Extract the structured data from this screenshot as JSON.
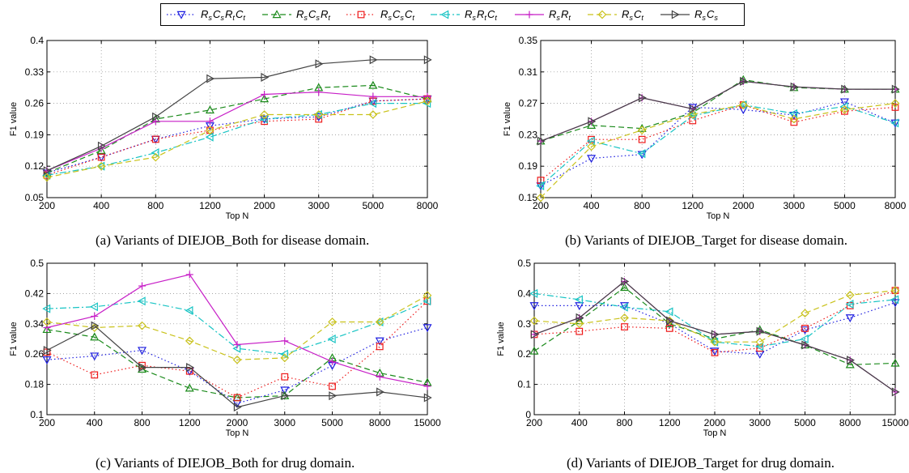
{
  "legend": {
    "entries": [
      {
        "key": "RsCsRtCt",
        "sub": [
          [
            "R",
            "s"
          ],
          [
            "C",
            "s"
          ],
          [
            "R",
            "t"
          ],
          [
            "C",
            "t"
          ]
        ]
      },
      {
        "key": "RsCsRt",
        "sub": [
          [
            "R",
            "s"
          ],
          [
            "C",
            "s"
          ],
          [
            "R",
            "t"
          ]
        ]
      },
      {
        "key": "RsCsCt",
        "sub": [
          [
            "R",
            "s"
          ],
          [
            "C",
            "s"
          ],
          [
            "C",
            "t"
          ]
        ]
      },
      {
        "key": "RsRtCt",
        "sub": [
          [
            "R",
            "s"
          ],
          [
            "R",
            "t"
          ],
          [
            "C",
            "t"
          ]
        ]
      },
      {
        "key": "RsRt",
        "sub": [
          [
            "R",
            "s"
          ],
          [
            "R",
            "t"
          ]
        ]
      },
      {
        "key": "RsCt",
        "sub": [
          [
            "R",
            "s"
          ],
          [
            "C",
            "t"
          ]
        ]
      },
      {
        "key": "RsCs",
        "sub": [
          [
            "R",
            "s"
          ],
          [
            "C",
            "s"
          ]
        ]
      }
    ],
    "placement": "top-center"
  },
  "styles": {
    "RsCsRtCt": {
      "color": "#1f1fe0",
      "marker": "triangle-down",
      "dash": "1.5 3"
    },
    "RsCsRt": {
      "color": "#1a8a1a",
      "marker": "triangle-up",
      "dash": "7 4"
    },
    "RsCsCt": {
      "color": "#ee1c1c",
      "marker": "square",
      "dash": "1.5 3"
    },
    "RsRtCt": {
      "color": "#18c4c4",
      "marker": "triangle-left",
      "dash": "8 3 2 3"
    },
    "RsRt": {
      "color": "#c71fc7",
      "marker": "plus",
      "dash": ""
    },
    "RsCt": {
      "color": "#c9c21a",
      "marker": "diamond",
      "dash": "7 4"
    },
    "RsCs": {
      "color": "#444444",
      "marker": "triangle-right",
      "dash": ""
    }
  },
  "captions": {
    "a": "(a) Variants of DIEJOB_Both for disease domain.",
    "b": "(b) Variants of DIEJOB_Target for disease domain.",
    "c": "(c) Variants of DIEJOB_Both for drug domain.",
    "d": "(d) Variants of DIEJOB_Target for drug domain."
  },
  "chart_data": [
    {
      "id": "a",
      "type": "line",
      "xlabel": "Top N",
      "ylabel": "F1 value",
      "categories": [
        "200",
        "400",
        "800",
        "1200",
        "2000",
        "3000",
        "5000",
        "8000"
      ],
      "ylim": [
        0.05,
        0.4
      ],
      "yticks": [
        "0.05",
        "0.12",
        "0.19",
        "0.26",
        "0.33",
        "0.4"
      ],
      "grid": true,
      "series": [
        {
          "key": "RsCsRtCt",
          "values": [
            0.105,
            0.14,
            0.18,
            0.21,
            0.225,
            0.23,
            0.265,
            0.27
          ]
        },
        {
          "key": "RsCsRt",
          "values": [
            0.105,
            0.155,
            0.225,
            0.245,
            0.27,
            0.295,
            0.3,
            0.27
          ]
        },
        {
          "key": "RsCsCt",
          "values": [
            0.1,
            0.14,
            0.18,
            0.2,
            0.22,
            0.225,
            0.265,
            0.27
          ]
        },
        {
          "key": "RsRtCt",
          "values": [
            0.1,
            0.12,
            0.15,
            0.185,
            0.225,
            0.235,
            0.26,
            0.26
          ]
        },
        {
          "key": "RsRt",
          "values": [
            0.11,
            0.16,
            0.22,
            0.22,
            0.28,
            0.285,
            0.275,
            0.275
          ]
        },
        {
          "key": "RsCt",
          "values": [
            0.095,
            0.12,
            0.14,
            0.2,
            0.235,
            0.235,
            0.235,
            0.265
          ]
        },
        {
          "key": "RsCs",
          "values": [
            0.11,
            0.165,
            0.23,
            0.315,
            0.318,
            0.348,
            0.357,
            0.357
          ]
        }
      ]
    },
    {
      "id": "b",
      "type": "line",
      "xlabel": "Top N",
      "ylabel": "F1 value",
      "categories": [
        "200",
        "400",
        "800",
        "1200",
        "2000",
        "3000",
        "5000",
        "8000"
      ],
      "ylim": [
        0.15,
        0.35
      ],
      "yticks": [
        "0.15",
        "0.19",
        "0.23",
        "0.27",
        "0.31",
        "0.35"
      ],
      "grid": true,
      "series": [
        {
          "key": "RsCsRtCt",
          "values": [
            0.165,
            0.2,
            0.205,
            0.265,
            0.262,
            0.255,
            0.272,
            0.245
          ]
        },
        {
          "key": "RsCsRt",
          "values": [
            0.222,
            0.242,
            0.238,
            0.258,
            0.3,
            0.29,
            0.288,
            0.288
          ]
        },
        {
          "key": "RsCsCt",
          "values": [
            0.172,
            0.224,
            0.224,
            0.248,
            0.268,
            0.246,
            0.26,
            0.265
          ]
        },
        {
          "key": "RsRtCt",
          "values": [
            0.165,
            0.222,
            0.206,
            0.254,
            0.268,
            0.257,
            0.266,
            0.245
          ]
        },
        {
          "key": "RsRt",
          "values": [
            0.222,
            0.247,
            0.277,
            0.263,
            0.298,
            0.291,
            0.288,
            0.288
          ]
        },
        {
          "key": "RsCt",
          "values": [
            0.15,
            0.215,
            0.236,
            0.256,
            0.268,
            0.25,
            0.262,
            0.27
          ]
        },
        {
          "key": "RsCs",
          "values": [
            0.222,
            0.247,
            0.277,
            0.263,
            0.298,
            0.291,
            0.288,
            0.288
          ]
        }
      ]
    },
    {
      "id": "c",
      "type": "line",
      "xlabel": "Top N",
      "ylabel": "F1 value",
      "categories": [
        "200",
        "400",
        "800",
        "1200",
        "2000",
        "3000",
        "5000",
        "8000",
        "15000"
      ],
      "ylim": [
        0.1,
        0.5
      ],
      "yticks": [
        "0.1",
        "0.18",
        "0.26",
        "0.34",
        "0.42",
        "0.5"
      ],
      "grid": true,
      "series": [
        {
          "key": "RsCsRtCt",
          "values": [
            0.245,
            0.255,
            0.27,
            0.215,
            0.13,
            0.165,
            0.23,
            0.295,
            0.33
          ]
        },
        {
          "key": "RsCsRt",
          "values": [
            0.325,
            0.305,
            0.22,
            0.17,
            0.145,
            0.15,
            0.25,
            0.21,
            0.185
          ]
        },
        {
          "key": "RsCsCt",
          "values": [
            0.265,
            0.205,
            0.23,
            0.215,
            0.145,
            0.2,
            0.175,
            0.28,
            0.4
          ]
        },
        {
          "key": "RsRtCt",
          "values": [
            0.38,
            0.385,
            0.4,
            0.375,
            0.275,
            0.26,
            0.3,
            0.345,
            0.4
          ]
        },
        {
          "key": "RsRt",
          "values": [
            0.33,
            0.36,
            0.44,
            0.47,
            0.285,
            0.295,
            0.24,
            0.2,
            0.175
          ]
        },
        {
          "key": "RsCt",
          "values": [
            0.345,
            0.33,
            0.335,
            0.295,
            0.245,
            0.25,
            0.345,
            0.345,
            0.415
          ]
        },
        {
          "key": "RsCs",
          "values": [
            0.27,
            0.335,
            0.225,
            0.225,
            0.12,
            0.15,
            0.15,
            0.16,
            0.145
          ]
        }
      ]
    },
    {
      "id": "d",
      "type": "line",
      "xlabel": "Top N",
      "ylabel": "F1 value",
      "categories": [
        "200",
        "400",
        "800",
        "1200",
        "2000",
        "3000",
        "5000",
        "8000",
        "15000"
      ],
      "ylim": [
        0,
        0.5
      ],
      "yticks": [
        "0",
        "0.1",
        "0.2",
        "0.3",
        "0.4",
        "0.5"
      ],
      "grid": true,
      "series": [
        {
          "key": "RsCsRtCt",
          "values": [
            0.36,
            0.36,
            0.36,
            0.3,
            0.21,
            0.2,
            0.28,
            0.32,
            0.37
          ]
        },
        {
          "key": "RsCsRt",
          "values": [
            0.21,
            0.31,
            0.42,
            0.3,
            0.25,
            0.28,
            0.23,
            0.165,
            0.17
          ]
        },
        {
          "key": "RsCsCt",
          "values": [
            0.265,
            0.275,
            0.29,
            0.285,
            0.205,
            0.22,
            0.285,
            0.36,
            0.41
          ]
        },
        {
          "key": "RsRtCt",
          "values": [
            0.4,
            0.38,
            0.355,
            0.34,
            0.24,
            0.225,
            0.25,
            0.365,
            0.38
          ]
        },
        {
          "key": "RsRt",
          "values": [
            0.265,
            0.32,
            0.44,
            0.31,
            0.265,
            0.275,
            0.23,
            0.18,
            0.075
          ]
        },
        {
          "key": "RsCt",
          "values": [
            0.31,
            0.3,
            0.32,
            0.31,
            0.24,
            0.24,
            0.335,
            0.395,
            0.41
          ]
        },
        {
          "key": "RsCs",
          "values": [
            0.265,
            0.32,
            0.44,
            0.31,
            0.265,
            0.275,
            0.23,
            0.18,
            0.075
          ]
        }
      ]
    }
  ]
}
